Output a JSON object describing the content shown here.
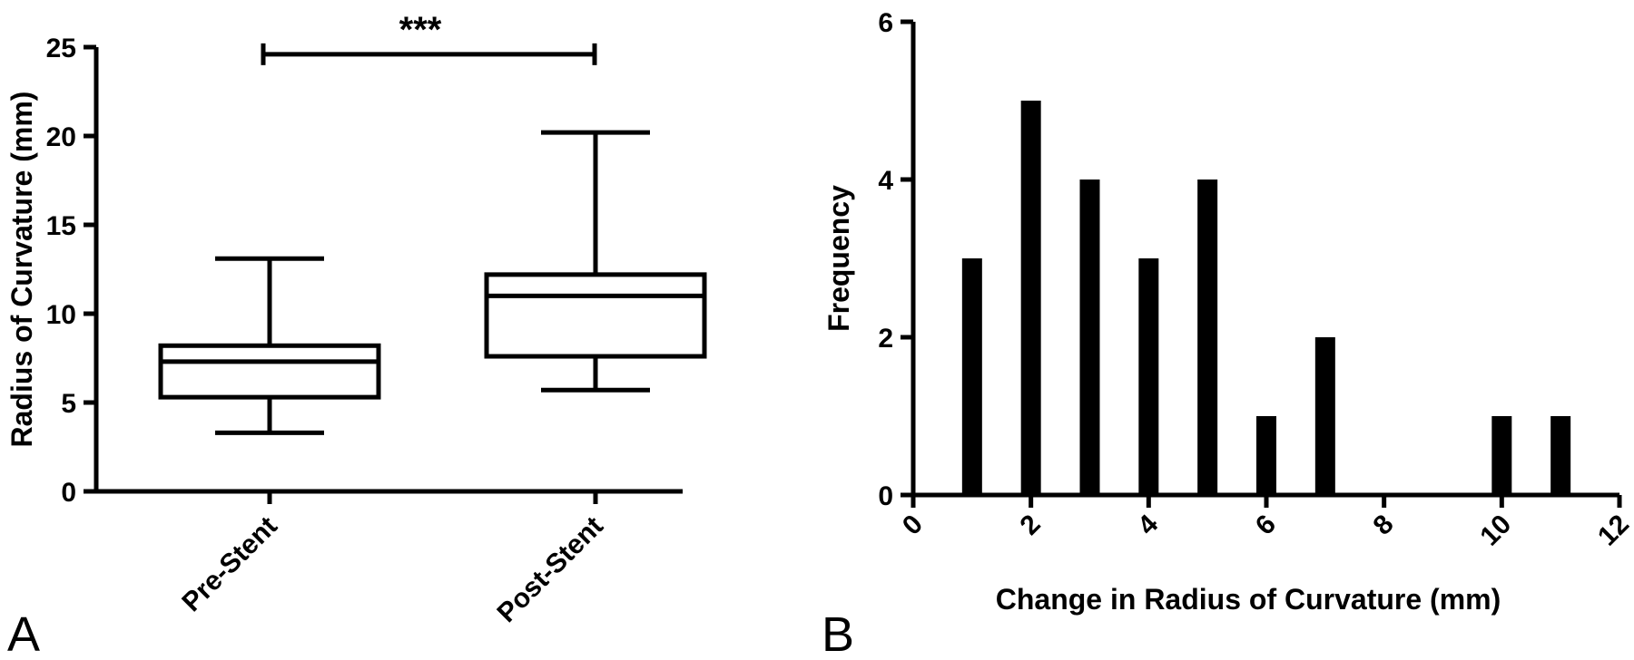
{
  "chart_data": [
    {
      "panel": "A",
      "type": "box",
      "xlabel": "",
      "ylabel": "Radius of Curvature (mm)",
      "ylim": [
        0,
        25
      ],
      "yticks": [
        "0",
        "5",
        "10",
        "15",
        "20",
        "25"
      ],
      "categories": [
        "Pre-Stent",
        "Post-Stent"
      ],
      "boxes": [
        {
          "category": "Pre-Stent",
          "min": 3.3,
          "q1": 5.3,
          "median": 7.3,
          "q3": 8.2,
          "max": 13.1
        },
        {
          "category": "Post-Stent",
          "min": 5.7,
          "q1": 7.6,
          "median": 11.0,
          "q3": 12.2,
          "max": 20.2
        }
      ],
      "significance": {
        "label": "***",
        "y": 24.6
      }
    },
    {
      "panel": "B",
      "type": "bar",
      "xlabel": "Change in Radius of Curvature (mm)",
      "ylabel": "Frequency",
      "xlim": [
        0,
        12
      ],
      "ylim": [
        0,
        6
      ],
      "xticks": [
        "0",
        "2",
        "4",
        "6",
        "8",
        "10",
        "12"
      ],
      "yticks": [
        "0",
        "2",
        "4",
        "6"
      ],
      "x": [
        1,
        2,
        3,
        4,
        5,
        6,
        7,
        10,
        11
      ],
      "values": [
        3,
        5,
        4,
        3,
        4,
        1,
        2,
        1,
        1
      ]
    }
  ]
}
